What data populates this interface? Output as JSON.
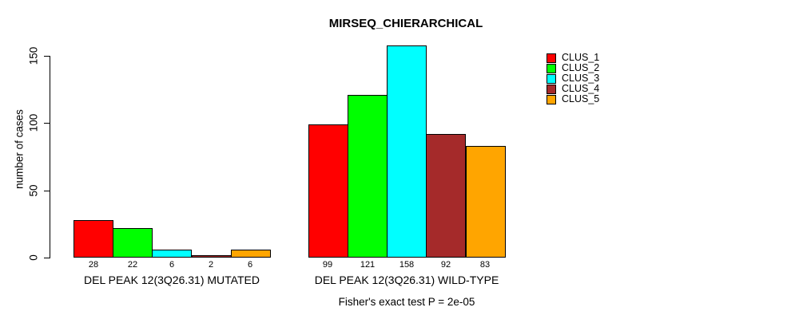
{
  "page": {
    "background": "#ffffff",
    "text_color": "#000000"
  },
  "chart_data": {
    "type": "bar",
    "title": "MIRSEQ_CHIERARCHICAL",
    "xlabel": "",
    "ylabel": "number of cases",
    "yticks": [
      0,
      50,
      100,
      150
    ],
    "ylim": [
      0,
      150
    ],
    "grid": false,
    "legend_position": "top-right",
    "bar_border_color": "#000000",
    "series": [
      {
        "name": "CLUS_1",
        "color": "#FF0000"
      },
      {
        "name": "CLUS_2",
        "color": "#00FF00"
      },
      {
        "name": "CLUS_3",
        "color": "#00FFFF"
      },
      {
        "name": "CLUS_4",
        "color": "#A52A2A"
      },
      {
        "name": "CLUS_5",
        "color": "#FFA500"
      }
    ],
    "groups": [
      {
        "label": "DEL PEAK 12(3Q26.31) MUTATED",
        "values": [
          28,
          22,
          6,
          2,
          6
        ]
      },
      {
        "label": "DEL PEAK 12(3Q26.31) WILD-TYPE",
        "values": [
          99,
          121,
          158,
          92,
          83
        ]
      }
    ],
    "value_labels_shown": true,
    "annotation": "Fisher's exact test P = 2e-05"
  }
}
